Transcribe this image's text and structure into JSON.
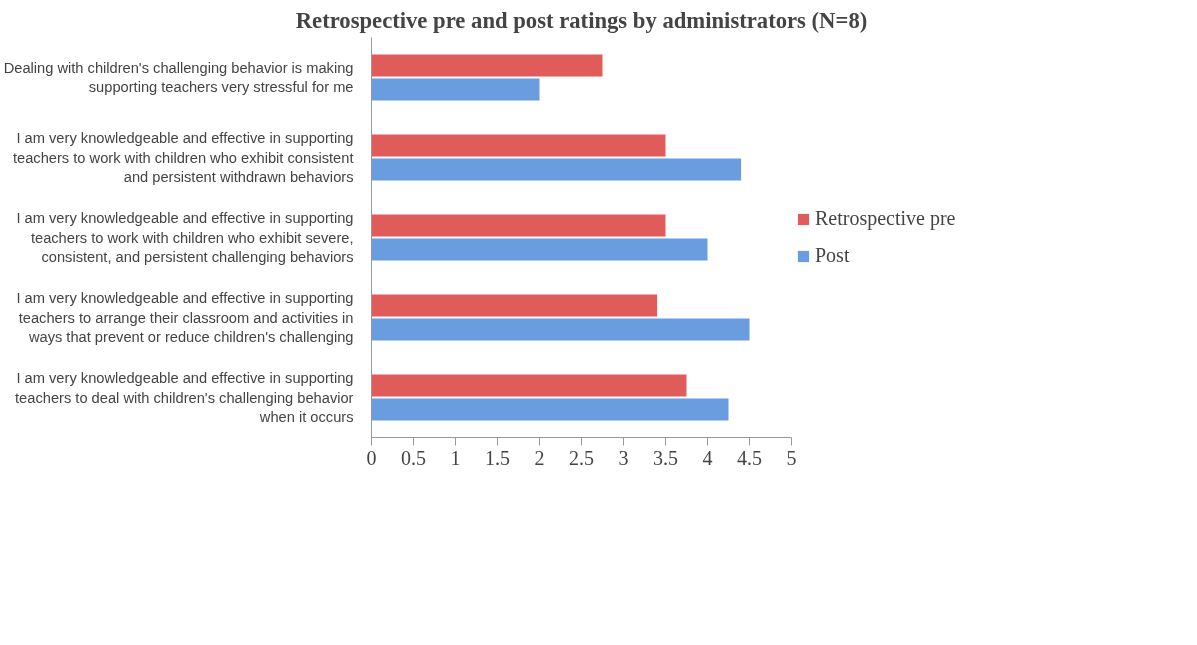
{
  "chart_data": {
    "type": "bar",
    "orientation": "horizontal",
    "title": "Retrospective pre and post ratings by administrators (N=8)",
    "categories": [
      "Dealing with children's challenging behavior is making\nsupporting teachers very stressful for me",
      "I am very knowledgeable and effective in supporting\nteachers to work with children who exhibit consistent\nand persistent withdrawn behaviors",
      "I am very knowledgeable and effective in supporting\nteachers to work with children who exhibit severe,\nconsistent, and persistent challenging behaviors",
      "I am very knowledgeable and effective in supporting\nteachers to arrange their classroom and activities in\nways that prevent or reduce children's challenging",
      "I am very knowledgeable and effective in supporting\nteachers to deal with children's challenging behavior\nwhen it occurs"
    ],
    "series": [
      {
        "name": "Retrospective pre",
        "color": "#e05c5a",
        "values": [
          2.75,
          3.5,
          3.5,
          3.4,
          3.75
        ]
      },
      {
        "name": "Post",
        "color": "#6a9de0",
        "values": [
          2.0,
          4.4,
          4.0,
          4.5,
          4.25
        ]
      }
    ],
    "xlim": [
      0,
      5
    ],
    "xticks": [
      0,
      0.5,
      1,
      1.5,
      2,
      2.5,
      3,
      3.5,
      4,
      4.5,
      5
    ],
    "grid": false,
    "legend": "right"
  }
}
